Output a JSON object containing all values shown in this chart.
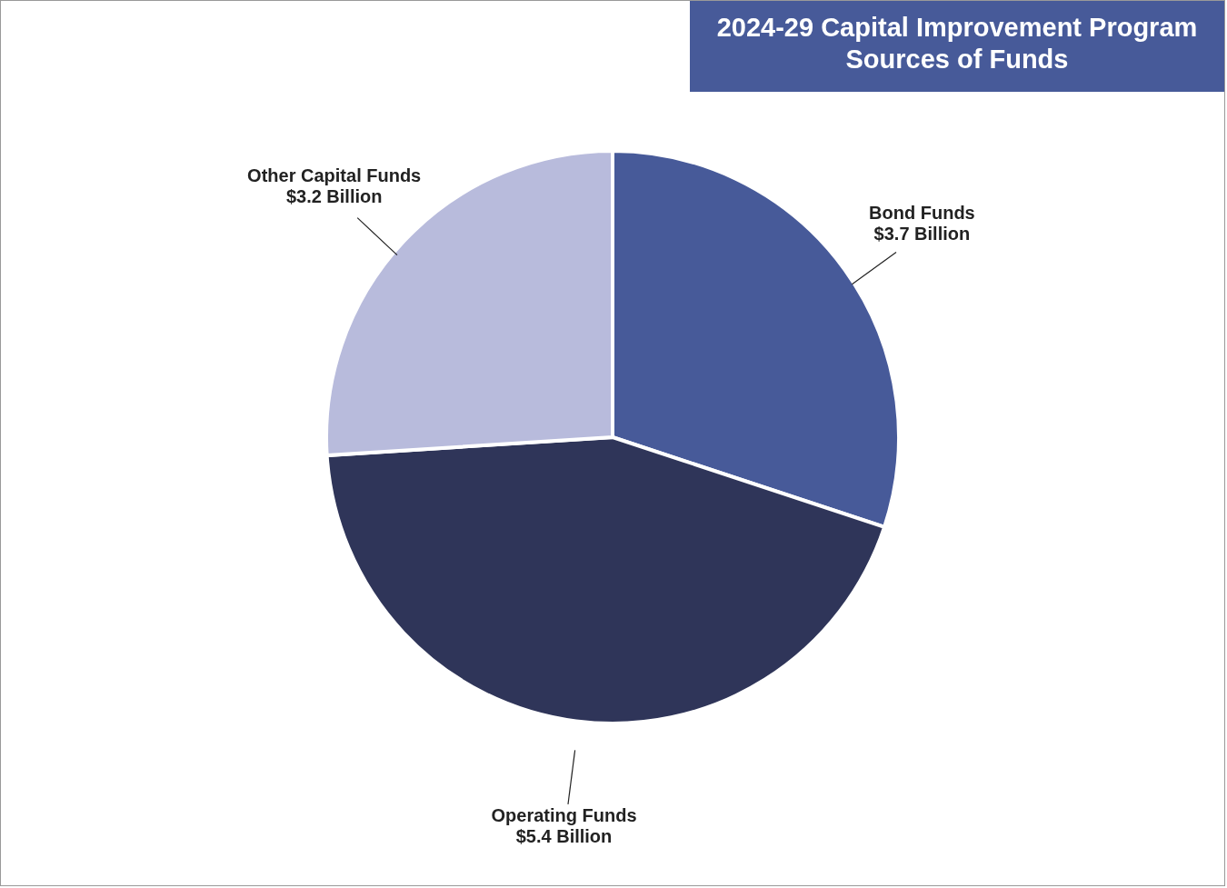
{
  "chart_data": {
    "type": "pie",
    "title": "2024-29 Capital Improvement Program Sources of Funds",
    "categories": [
      "Bond Funds",
      "Operating Funds",
      "Other Capital Funds"
    ],
    "values": [
      3.7,
      5.4,
      3.2
    ],
    "value_labels": [
      "$3.7 Billion",
      "$5.4 Billion",
      "$3.2 Billion"
    ],
    "colors": [
      "#475a99",
      "#2f3559",
      "#b8bbdc"
    ]
  }
}
